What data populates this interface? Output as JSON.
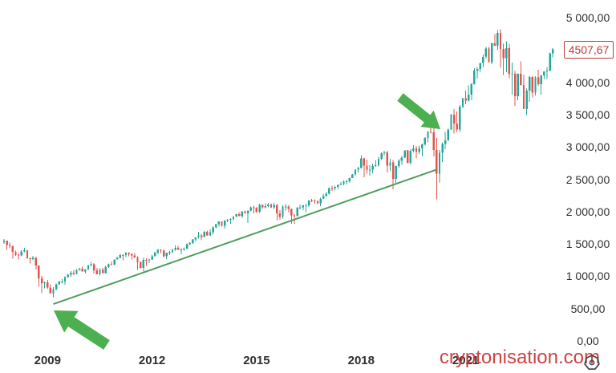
{
  "price_label": {
    "text": "4507,67",
    "value": 4507.67,
    "color": "#c13b3b"
  },
  "watermark": {
    "text": "cryptonisation.com",
    "color": "#cc3434"
  },
  "icons": {
    "gear": "gear-icon"
  },
  "chart_data": {
    "type": "candlestick",
    "start_month": "2007-10",
    "ylim": [
      0,
      5000
    ],
    "up_color": "#26a69a",
    "down_color": "#e2544e",
    "axis_text_color": "#2e2e33",
    "y_ticks": [
      {
        "label": "5 000,00",
        "value": 5000
      },
      {
        "label": "4 000,00",
        "value": 4000
      },
      {
        "label": "3 500,00",
        "value": 3500
      },
      {
        "label": "3 000,00",
        "value": 3000
      },
      {
        "label": "2 500,00",
        "value": 2500
      },
      {
        "label": "2 000,00",
        "value": 2000
      },
      {
        "label": "1 500,00",
        "value": 1500
      },
      {
        "label": "1 000,00",
        "value": 1000
      },
      {
        "label": "500,00",
        "value": 500
      },
      {
        "label": "0,00",
        "value": 0
      }
    ],
    "x_ticks": [
      {
        "label": "2009",
        "month": "2009-01"
      },
      {
        "label": "2012",
        "month": "2012-01"
      },
      {
        "label": "2015",
        "month": "2015-01"
      },
      {
        "label": "2018",
        "month": "2018-01"
      },
      {
        "label": "2021",
        "month": "2021-01"
      }
    ],
    "trendline": {
      "from": {
        "month": "2009-03",
        "price": 570
      },
      "to": {
        "month": "2020-03",
        "price": 2650
      },
      "color": "#4f9e60",
      "width": 2
    },
    "annotations": [
      {
        "type": "arrow",
        "name": "arrow-2009-bottom",
        "direction": "up-left",
        "tail": [
          133,
          430
        ],
        "tip": [
          67,
          387
        ],
        "shaft_w": 7,
        "head_w": 16,
        "head_len": 26,
        "color": "#4caf50"
      },
      {
        "type": "arrow",
        "name": "arrow-2020-top",
        "direction": "down-right",
        "tail": [
          499,
          121
        ],
        "tip": [
          549,
          161
        ],
        "shaft_w": 6,
        "head_w": 13,
        "head_len": 21,
        "color": "#4caf50"
      }
    ],
    "candles": [
      [
        1527,
        1576,
        1500,
        1549
      ],
      [
        1549,
        1552,
        1406,
        1481
      ],
      [
        1481,
        1524,
        1436,
        1468
      ],
      [
        1468,
        1472,
        1270,
        1379
      ],
      [
        1379,
        1396,
        1317,
        1331
      ],
      [
        1331,
        1360,
        1257,
        1323
      ],
      [
        1323,
        1399,
        1310,
        1386
      ],
      [
        1386,
        1440,
        1373,
        1400
      ],
      [
        1400,
        1406,
        1272,
        1280
      ],
      [
        1280,
        1292,
        1200,
        1267
      ],
      [
        1267,
        1313,
        1247,
        1283
      ],
      [
        1283,
        1303,
        1106,
        1166
      ],
      [
        1166,
        1167,
        839,
        969
      ],
      [
        969,
        1007,
        741,
        896
      ],
      [
        896,
        918,
        815,
        903
      ],
      [
        903,
        944,
        804,
        826
      ],
      [
        826,
        875,
        734,
        735
      ],
      [
        735,
        833,
        667,
        798
      ],
      [
        798,
        888,
        780,
        873
      ],
      [
        873,
        930,
        866,
        919
      ],
      [
        919,
        956,
        888,
        919
      ],
      [
        919,
        997,
        869,
        987
      ],
      [
        987,
        1039,
        978,
        1021
      ],
      [
        1021,
        1080,
        992,
        1057
      ],
      [
        1057,
        1101,
        1020,
        1036
      ],
      [
        1036,
        1113,
        1029,
        1096
      ],
      [
        1096,
        1130,
        1086,
        1115
      ],
      [
        1115,
        1150,
        1071,
        1074
      ],
      [
        1074,
        1112,
        1045,
        1104
      ],
      [
        1104,
        1181,
        1098,
        1169
      ],
      [
        1169,
        1220,
        1157,
        1187
      ],
      [
        1187,
        1205,
        1040,
        1089
      ],
      [
        1089,
        1131,
        1028,
        1031
      ],
      [
        1031,
        1121,
        1011,
        1102
      ],
      [
        1102,
        1129,
        1040,
        1049
      ],
      [
        1049,
        1157,
        1041,
        1141
      ],
      [
        1141,
        1196,
        1131,
        1183
      ],
      [
        1183,
        1227,
        1173,
        1181
      ],
      [
        1181,
        1262,
        1173,
        1258
      ],
      [
        1258,
        1302,
        1257,
        1286
      ],
      [
        1286,
        1344,
        1281,
        1327
      ],
      [
        1327,
        1339,
        1249,
        1326
      ],
      [
        1326,
        1370,
        1294,
        1364
      ],
      [
        1364,
        1371,
        1311,
        1345
      ],
      [
        1345,
        1353,
        1258,
        1321
      ],
      [
        1321,
        1356,
        1282,
        1292
      ],
      [
        1292,
        1307,
        1101,
        1219
      ],
      [
        1219,
        1230,
        1114,
        1131
      ],
      [
        1131,
        1292,
        1075,
        1253
      ],
      [
        1253,
        1277,
        1158,
        1247
      ],
      [
        1247,
        1269,
        1202,
        1258
      ],
      [
        1258,
        1333,
        1252,
        1312
      ],
      [
        1312,
        1378,
        1307,
        1366
      ],
      [
        1366,
        1419,
        1340,
        1408
      ],
      [
        1408,
        1422,
        1357,
        1398
      ],
      [
        1398,
        1415,
        1292,
        1310
      ],
      [
        1310,
        1363,
        1267,
        1362
      ],
      [
        1362,
        1391,
        1325,
        1379
      ],
      [
        1379,
        1426,
        1354,
        1407
      ],
      [
        1407,
        1475,
        1396,
        1441
      ],
      [
        1441,
        1471,
        1403,
        1412
      ],
      [
        1412,
        1434,
        1343,
        1416
      ],
      [
        1416,
        1448,
        1398,
        1426
      ],
      [
        1426,
        1509,
        1420,
        1498
      ],
      [
        1498,
        1531,
        1485,
        1515
      ],
      [
        1515,
        1573,
        1501,
        1569
      ],
      [
        1569,
        1601,
        1536,
        1598
      ],
      [
        1598,
        1687,
        1581,
        1631
      ],
      [
        1631,
        1654,
        1560,
        1606
      ],
      [
        1606,
        1699,
        1604,
        1686
      ],
      [
        1686,
        1709,
        1627,
        1633
      ],
      [
        1633,
        1730,
        1627,
        1682
      ],
      [
        1682,
        1775,
        1646,
        1757
      ],
      [
        1757,
        1813,
        1746,
        1806
      ],
      [
        1806,
        1849,
        1768,
        1848
      ],
      [
        1848,
        1851,
        1770,
        1783
      ],
      [
        1783,
        1868,
        1738,
        1859
      ],
      [
        1859,
        1884,
        1834,
        1872
      ],
      [
        1872,
        1897,
        1814,
        1884
      ],
      [
        1884,
        1928,
        1860,
        1924
      ],
      [
        1924,
        1968,
        1915,
        1960
      ],
      [
        1960,
        1991,
        1930,
        1931
      ],
      [
        1931,
        2005,
        1905,
        2003
      ],
      [
        2003,
        2019,
        1964,
        1972
      ],
      [
        1972,
        2019,
        1821,
        2018
      ],
      [
        2018,
        2076,
        2001,
        2068
      ],
      [
        2068,
        2093,
        1973,
        2059
      ],
      [
        2059,
        2072,
        1981,
        1995
      ],
      [
        1995,
        2120,
        1981,
        2105
      ],
      [
        2105,
        2117,
        2040,
        2068
      ],
      [
        2068,
        2126,
        2048,
        2086
      ],
      [
        2086,
        2135,
        2068,
        2107
      ],
      [
        2107,
        2130,
        2056,
        2063
      ],
      [
        2063,
        2133,
        2044,
        2104
      ],
      [
        2104,
        2113,
        1867,
        1972
      ],
      [
        1972,
        2021,
        1872,
        1920
      ],
      [
        1920,
        2095,
        1894,
        2079
      ],
      [
        2079,
        2116,
        2019,
        2080
      ],
      [
        2080,
        2104,
        1993,
        2044
      ],
      [
        2044,
        2046,
        1812,
        1940
      ],
      [
        1940,
        1963,
        1810,
        1932
      ],
      [
        1932,
        2072,
        1931,
        2060
      ],
      [
        2060,
        2111,
        2033,
        2065
      ],
      [
        2065,
        2103,
        2025,
        2097
      ],
      [
        2097,
        2121,
        1992,
        2099
      ],
      [
        2099,
        2177,
        2074,
        2174
      ],
      [
        2174,
        2194,
        2147,
        2171
      ],
      [
        2171,
        2188,
        2119,
        2168
      ],
      [
        2168,
        2170,
        2114,
        2126
      ],
      [
        2126,
        2214,
        2084,
        2199
      ],
      [
        2199,
        2278,
        2187,
        2239
      ],
      [
        2239,
        2301,
        2234,
        2279
      ],
      [
        2279,
        2371,
        2267,
        2364
      ],
      [
        2364,
        2401,
        2322,
        2363
      ],
      [
        2363,
        2399,
        2329,
        2384
      ],
      [
        2384,
        2418,
        2353,
        2412
      ],
      [
        2412,
        2454,
        2406,
        2423
      ],
      [
        2423,
        2484,
        2408,
        2470
      ],
      [
        2470,
        2491,
        2417,
        2472
      ],
      [
        2472,
        2523,
        2447,
        2519
      ],
      [
        2519,
        2583,
        2517,
        2575
      ],
      [
        2575,
        2658,
        2557,
        2648
      ],
      [
        2648,
        2695,
        2606,
        2674
      ],
      [
        2674,
        2873,
        2668,
        2824
      ],
      [
        2824,
        2835,
        2533,
        2714
      ],
      [
        2714,
        2802,
        2586,
        2641
      ],
      [
        2641,
        2717,
        2554,
        2648
      ],
      [
        2648,
        2742,
        2595,
        2705
      ],
      [
        2705,
        2791,
        2692,
        2718
      ],
      [
        2718,
        2848,
        2699,
        2816
      ],
      [
        2816,
        2917,
        2796,
        2902
      ],
      [
        2902,
        2941,
        2865,
        2914
      ],
      [
        2914,
        2940,
        2603,
        2712
      ],
      [
        2712,
        2815,
        2631,
        2760
      ],
      [
        2760,
        2800,
        2347,
        2507
      ],
      [
        2507,
        2709,
        2444,
        2704
      ],
      [
        2704,
        2813,
        2682,
        2784
      ],
      [
        2784,
        2861,
        2722,
        2834
      ],
      [
        2834,
        2949,
        2828,
        2946
      ],
      [
        2946,
        2954,
        2751,
        2752
      ],
      [
        2752,
        2964,
        2729,
        2942
      ],
      [
        2942,
        3028,
        2914,
        2980
      ],
      [
        2980,
        3014,
        2822,
        2926
      ],
      [
        2926,
        3022,
        2892,
        2977
      ],
      [
        2977,
        3050,
        2856,
        3038
      ],
      [
        3038,
        3154,
        3024,
        3141
      ],
      [
        3141,
        3248,
        3070,
        3231
      ],
      [
        3231,
        3338,
        3215,
        3226
      ],
      [
        3226,
        3393,
        2856,
        2954
      ],
      [
        2954,
        3137,
        2192,
        2585
      ],
      [
        2585,
        2955,
        2448,
        2912
      ],
      [
        2912,
        3068,
        2766,
        3044
      ],
      [
        3044,
        3233,
        2966,
        3100
      ],
      [
        3100,
        3280,
        3094,
        3271
      ],
      [
        3271,
        3514,
        3264,
        3500
      ],
      [
        3500,
        3588,
        3209,
        3363
      ],
      [
        3363,
        3550,
        3234,
        3270
      ],
      [
        3270,
        3646,
        3233,
        3622
      ],
      [
        3622,
        3760,
        3596,
        3756
      ],
      [
        3756,
        3870,
        3663,
        3714
      ],
      [
        3714,
        3950,
        3705,
        3811
      ],
      [
        3811,
        3995,
        3724,
        3973
      ],
      [
        3973,
        4219,
        3966,
        4181
      ],
      [
        4181,
        4238,
        4057,
        4204
      ],
      [
        4204,
        4302,
        4165,
        4298
      ],
      [
        4298,
        4430,
        4233,
        4395
      ],
      [
        4395,
        4546,
        4368,
        4523
      ],
      [
        4523,
        4546,
        4306,
        4308
      ],
      [
        4308,
        4608,
        4279,
        4605
      ],
      [
        4605,
        4744,
        4560,
        4567
      ],
      [
        4567,
        4808,
        4495,
        4766
      ],
      [
        4766,
        4818,
        4222,
        4516
      ],
      [
        4516,
        4595,
        4115,
        4374
      ],
      [
        4374,
        4637,
        4158,
        4530
      ],
      [
        4530,
        4593,
        4063,
        4132
      ],
      [
        4132,
        4307,
        3811,
        4132
      ],
      [
        4132,
        4178,
        3637,
        3785
      ],
      [
        3785,
        4140,
        3721,
        4130
      ],
      [
        4130,
        4325,
        3954,
        3955
      ],
      [
        3955,
        4119,
        3584,
        3586
      ],
      [
        3586,
        3905,
        3492,
        3872
      ],
      [
        3872,
        4100,
        3698,
        4080
      ],
      [
        4080,
        4101,
        3764,
        3840
      ],
      [
        3840,
        4094,
        3794,
        4077
      ],
      [
        4077,
        4195,
        3943,
        3970
      ],
      [
        3970,
        4110,
        3809,
        4109
      ],
      [
        4109,
        4170,
        4049,
        4169
      ],
      [
        4169,
        4231,
        4048,
        4180
      ],
      [
        4180,
        4458,
        4171,
        4450
      ],
      [
        4450,
        4527,
        4385,
        4507.67
      ]
    ]
  }
}
